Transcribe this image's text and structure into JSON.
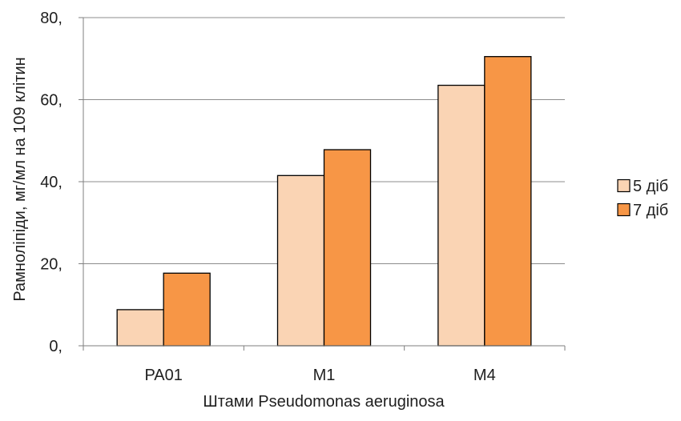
{
  "chart_data": {
    "type": "bar",
    "title": "",
    "xlabel": "Штами Pseudomonas  aeruginosa",
    "ylabel": "Рамноліпіди, мг/мл на 109 клітин",
    "categories": [
      "PA01",
      "M1",
      "M4"
    ],
    "series": [
      {
        "name": "5 діб",
        "values": [
          8.8,
          41.5,
          63.5
        ],
        "color": "#fad4b4"
      },
      {
        "name": "7 діб",
        "values": [
          17.7,
          47.8,
          70.5
        ],
        "color": "#f79646"
      }
    ],
    "ylim": [
      0,
      80
    ],
    "yticks": [
      0,
      20,
      40,
      60,
      80
    ],
    "ytick_labels": [
      "0,",
      "20,",
      "40,",
      "60,",
      "80,"
    ],
    "grid": true,
    "legend_position": "right"
  }
}
